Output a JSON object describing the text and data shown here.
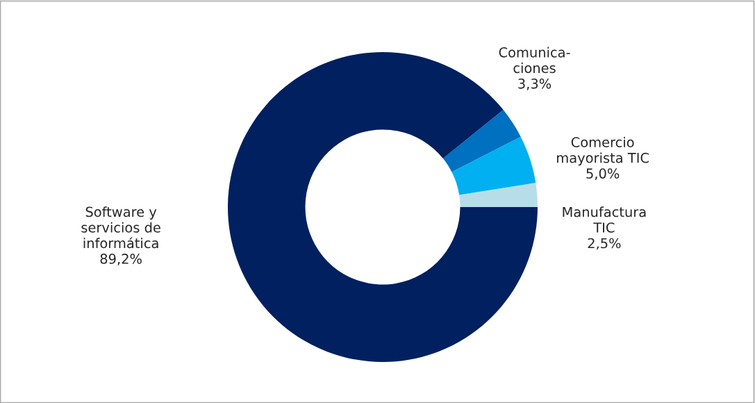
{
  "chart_data": {
    "type": "donut",
    "categories": [
      "Manufactura\nTIC",
      "Comercio\nmayorista TIC",
      "Comunica-\nciones",
      "Software y\nservicios de\ninformática"
    ],
    "values": [
      2.5,
      5.0,
      3.3,
      89.2
    ],
    "value_labels": [
      "2,5%",
      "5,0%",
      "3,3%",
      "89,2%"
    ],
    "colors": [
      "#b7dee8",
      "#00b0f0",
      "#0070c0",
      "#002060"
    ]
  }
}
